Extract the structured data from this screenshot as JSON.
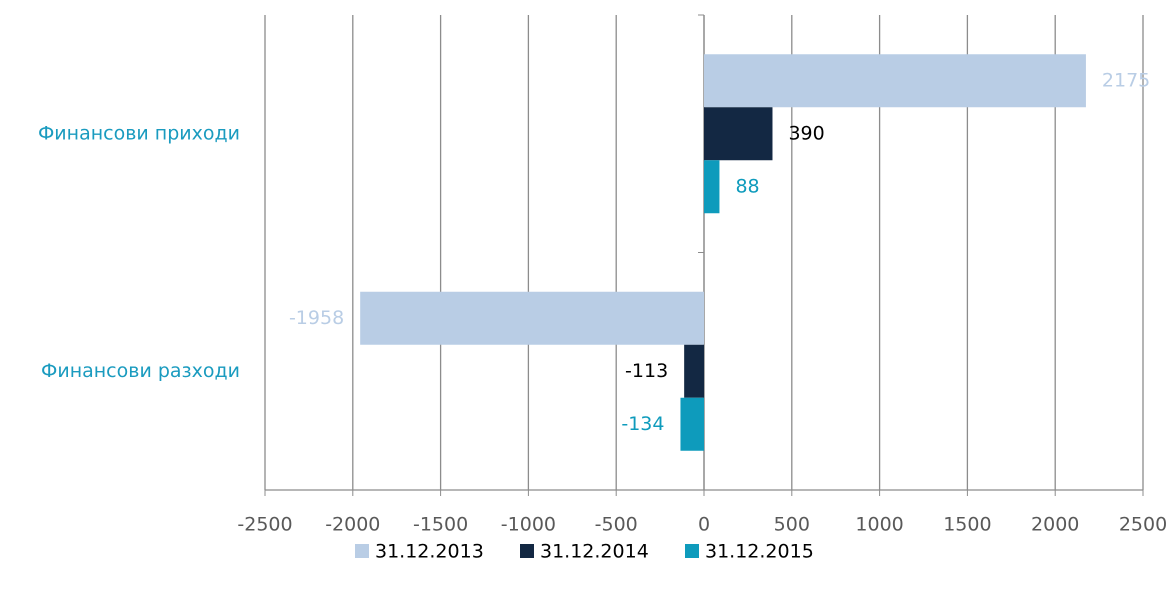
{
  "chart_data": {
    "type": "bar",
    "orientation": "horizontal",
    "categories": [
      "Финансови приходи",
      "Финансови разходи"
    ],
    "series": [
      {
        "name": "31.12.2013",
        "color": "#b9cde5",
        "values": [
          2175,
          -1958
        ]
      },
      {
        "name": "31.12.2014",
        "color": "#132843",
        "values": [
          390,
          -113
        ]
      },
      {
        "name": "31.12.2015",
        "color": "#0e9bbc",
        "values": [
          88,
          -134
        ]
      }
    ],
    "xlim": [
      -2500,
      2500
    ],
    "xticks": [
      -2500,
      -2000,
      -1500,
      -1000,
      -500,
      0,
      500,
      1000,
      1500,
      2000,
      2500
    ],
    "grid": true,
    "legend": "bottom"
  }
}
